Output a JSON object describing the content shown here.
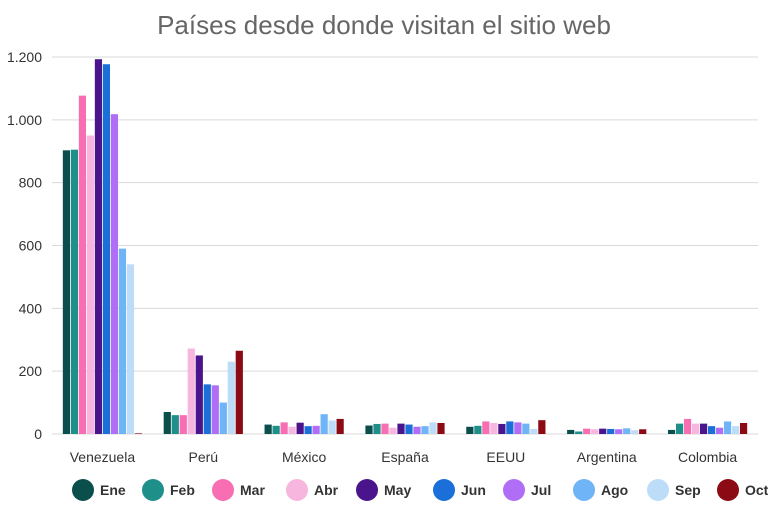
{
  "chart_data": {
    "type": "bar",
    "title": "Países desde donde visitan el sitio web",
    "xlabel": "",
    "ylabel": "",
    "ylim": [
      0,
      1200
    ],
    "y_ticks": [
      0,
      200,
      400,
      600,
      800,
      1000,
      1200
    ],
    "y_tick_labels": [
      "0",
      "200",
      "400",
      "600",
      "800",
      "1.000",
      "1.200"
    ],
    "grid": true,
    "legend_position": "bottom",
    "categories": [
      "Venezuela",
      "Perú",
      "México",
      "España",
      "EEUU",
      "Argentina",
      "Colombia"
    ],
    "series": [
      {
        "name": "Ene",
        "color": "#0b4f4c",
        "values": [
          903,
          70,
          30,
          27,
          23,
          13,
          13
        ]
      },
      {
        "name": "Feb",
        "color": "#1f8f8a",
        "values": [
          905,
          60,
          26,
          32,
          26,
          8,
          33
        ]
      },
      {
        "name": "Mar",
        "color": "#f76eb3",
        "values": [
          1077,
          60,
          37,
          33,
          40,
          17,
          48
        ]
      },
      {
        "name": "Abr",
        "color": "#f7b6dd",
        "values": [
          950,
          272,
          23,
          20,
          35,
          15,
          33
        ]
      },
      {
        "name": "May",
        "color": "#4a148c",
        "values": [
          1193,
          250,
          36,
          33,
          32,
          17,
          33
        ]
      },
      {
        "name": "Jun",
        "color": "#1a6fd9",
        "values": [
          1177,
          158,
          25,
          30,
          40,
          16,
          25
        ]
      },
      {
        "name": "Jul",
        "color": "#b06ef6",
        "values": [
          1018,
          155,
          26,
          23,
          37,
          15,
          20
        ]
      },
      {
        "name": "Ago",
        "color": "#6fb4f6",
        "values": [
          590,
          100,
          63,
          25,
          33,
          18,
          40
        ]
      },
      {
        "name": "Sep",
        "color": "#bcdcf8",
        "values": [
          540,
          230,
          43,
          37,
          16,
          12,
          25
        ]
      },
      {
        "name": "Oct",
        "color": "#8b0a14",
        "values": [
          2,
          265,
          48,
          35,
          44,
          15,
          35
        ]
      }
    ]
  }
}
